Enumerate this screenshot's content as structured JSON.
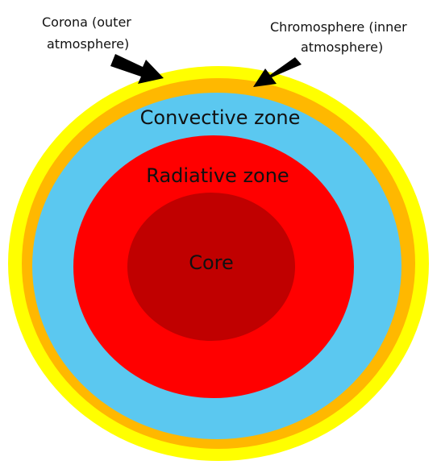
{
  "diagram": {
    "layers": [
      {
        "id": "corona",
        "color": "#ffff00"
      },
      {
        "id": "chromosphere",
        "color": "#ffb800"
      },
      {
        "id": "convective-zone",
        "label": "Convective zone",
        "color": "#5bc8f0"
      },
      {
        "id": "radiative-zone",
        "label": "Radiative zone",
        "color": "#ff0000"
      },
      {
        "id": "core",
        "label": "Core",
        "color": "#c00000"
      }
    ],
    "annotations": {
      "corona": {
        "line1": "Corona (outer",
        "line2": "atmosphere)"
      },
      "chromosphere": {
        "line1": "Chromosphere  (inner",
        "line2": "atmosphere)"
      }
    },
    "arrow_color": "#000000"
  }
}
